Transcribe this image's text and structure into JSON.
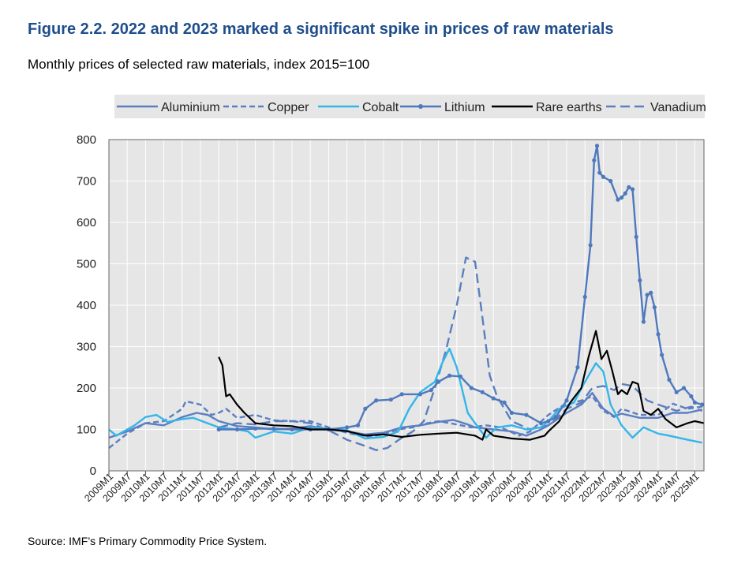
{
  "title": "Figure 2.2. 2022 and 2023 marked a significant spike in prices of raw materials",
  "subtitle": "Monthly prices of selected raw materials, index 2015=100",
  "source": "Source: IMF’s Primary Commodity Price System.",
  "colors": {
    "plot_bg": "#e6e6e6",
    "legend_bg": "#e6e6e6",
    "grid": "#ffffff",
    "title": "#1f4e8c"
  },
  "chart_data": {
    "type": "line",
    "title": "2022 and 2023 marked a significant spike in prices of raw materials",
    "xlabel": "",
    "ylabel": "",
    "ylim": [
      0,
      800
    ],
    "yticks": [
      0,
      100,
      200,
      300,
      400,
      500,
      600,
      700,
      800
    ],
    "x_range": [
      2009.0,
      2025.25
    ],
    "xtick_labels": [
      "2009M1",
      "2009M7",
      "2010M1",
      "2010M7",
      "2011M1",
      "2011M7",
      "2012M1",
      "2012M7",
      "2013M1",
      "2013M7",
      "2014M1",
      "2014M7",
      "2015M1",
      "2015M7",
      "2016M1",
      "2016M7",
      "2017M1",
      "2017M7",
      "2018M1",
      "2018M7",
      "2019M1",
      "2019M7",
      "2020M1",
      "2020M7",
      "2021M1",
      "2021M7",
      "2022M1",
      "2022M7",
      "2023M1",
      "2023M7",
      "2024M1",
      "2024M7",
      "2025M1"
    ],
    "grid": true,
    "legend_position": "top",
    "series": [
      {
        "name": "Aluminium",
        "color": "#5b7fc0",
        "dash": "solid",
        "markers": false,
        "points": [
          [
            2009.0,
            80
          ],
          [
            2009.5,
            95
          ],
          [
            2010.0,
            115
          ],
          [
            2010.5,
            110
          ],
          [
            2011.0,
            130
          ],
          [
            2011.4,
            140
          ],
          [
            2011.7,
            135
          ],
          [
            2012.0,
            120
          ],
          [
            2012.5,
            108
          ],
          [
            2013.0,
            105
          ],
          [
            2013.5,
            100
          ],
          [
            2014.0,
            102
          ],
          [
            2014.5,
            108
          ],
          [
            2015.0,
            100
          ],
          [
            2015.5,
            95
          ],
          [
            2016.0,
            88
          ],
          [
            2016.5,
            92
          ],
          [
            2017.0,
            105
          ],
          [
            2017.5,
            110
          ],
          [
            2018.0,
            118
          ],
          [
            2018.4,
            123
          ],
          [
            2018.8,
            112
          ],
          [
            2019.0,
            105
          ],
          [
            2019.5,
            100
          ],
          [
            2020.0,
            95
          ],
          [
            2020.4,
            85
          ],
          [
            2020.8,
            100
          ],
          [
            2021.0,
            110
          ],
          [
            2021.5,
            140
          ],
          [
            2021.9,
            160
          ],
          [
            2022.2,
            188
          ],
          [
            2022.5,
            150
          ],
          [
            2022.8,
            132
          ],
          [
            2023.0,
            138
          ],
          [
            2023.5,
            128
          ],
          [
            2024.0,
            128
          ],
          [
            2024.4,
            140
          ],
          [
            2024.8,
            140
          ],
          [
            2025.2,
            148
          ]
        ]
      },
      {
        "name": "Copper",
        "color": "#5b7fc0",
        "dash": "7,4",
        "markers": false,
        "points": [
          [
            2009.0,
            55
          ],
          [
            2009.5,
            90
          ],
          [
            2010.0,
            115
          ],
          [
            2010.5,
            120
          ],
          [
            2011.0,
            150
          ],
          [
            2011.1,
            168
          ],
          [
            2011.5,
            160
          ],
          [
            2011.8,
            135
          ],
          [
            2012.0,
            140
          ],
          [
            2012.2,
            150
          ],
          [
            2012.5,
            128
          ],
          [
            2013.0,
            135
          ],
          [
            2013.5,
            122
          ],
          [
            2014.0,
            120
          ],
          [
            2014.5,
            120
          ],
          [
            2015.0,
            105
          ],
          [
            2015.5,
            92
          ],
          [
            2016.0,
            82
          ],
          [
            2016.5,
            88
          ],
          [
            2016.9,
            100
          ],
          [
            2017.3,
            105
          ],
          [
            2017.7,
            115
          ],
          [
            2018.0,
            120
          ],
          [
            2018.5,
            112
          ],
          [
            2018.9,
            105
          ],
          [
            2019.3,
            110
          ],
          [
            2019.7,
            105
          ],
          [
            2020.2,
            85
          ],
          [
            2020.5,
            95
          ],
          [
            2021.0,
            135
          ],
          [
            2021.4,
            158
          ],
          [
            2021.9,
            170
          ],
          [
            2022.2,
            180
          ],
          [
            2022.5,
            145
          ],
          [
            2022.8,
            130
          ],
          [
            2023.0,
            150
          ],
          [
            2023.5,
            135
          ],
          [
            2024.0,
            135
          ],
          [
            2024.4,
            162
          ],
          [
            2024.8,
            150
          ],
          [
            2025.2,
            155
          ]
        ]
      },
      {
        "name": "Cobalt",
        "color": "#33b6e8",
        "dash": "solid",
        "markers": false,
        "points": [
          [
            2009.0,
            100
          ],
          [
            2009.2,
            85
          ],
          [
            2009.7,
            110
          ],
          [
            2010.0,
            130
          ],
          [
            2010.3,
            135
          ],
          [
            2010.6,
            118
          ],
          [
            2011.0,
            125
          ],
          [
            2011.3,
            128
          ],
          [
            2011.6,
            118
          ],
          [
            2012.0,
            105
          ],
          [
            2012.5,
            100
          ],
          [
            2012.8,
            95
          ],
          [
            2013.0,
            80
          ],
          [
            2013.5,
            95
          ],
          [
            2014.0,
            90
          ],
          [
            2014.5,
            105
          ],
          [
            2015.0,
            102
          ],
          [
            2015.5,
            98
          ],
          [
            2016.0,
            78
          ],
          [
            2016.5,
            82
          ],
          [
            2016.9,
            95
          ],
          [
            2017.2,
            150
          ],
          [
            2017.5,
            190
          ],
          [
            2017.9,
            215
          ],
          [
            2018.1,
            260
          ],
          [
            2018.3,
            295
          ],
          [
            2018.5,
            250
          ],
          [
            2018.8,
            140
          ],
          [
            2019.0,
            115
          ],
          [
            2019.3,
            80
          ],
          [
            2019.6,
            105
          ],
          [
            2020.0,
            110
          ],
          [
            2020.4,
            100
          ],
          [
            2020.8,
            105
          ],
          [
            2021.0,
            120
          ],
          [
            2021.3,
            150
          ],
          [
            2021.7,
            165
          ],
          [
            2022.0,
            215
          ],
          [
            2022.3,
            260
          ],
          [
            2022.5,
            240
          ],
          [
            2022.7,
            160
          ],
          [
            2023.0,
            110
          ],
          [
            2023.3,
            80
          ],
          [
            2023.6,
            105
          ],
          [
            2024.0,
            90
          ],
          [
            2024.3,
            85
          ],
          [
            2024.8,
            75
          ],
          [
            2025.2,
            68
          ]
        ]
      },
      {
        "name": "Lithium",
        "color": "#4f79bd",
        "dash": "solid",
        "markers": true,
        "points": [
          [
            2012.0,
            100
          ],
          [
            2012.5,
            100
          ],
          [
            2013.0,
            102
          ],
          [
            2013.5,
            102
          ],
          [
            2014.0,
            100
          ],
          [
            2014.5,
            100
          ],
          [
            2015.0,
            100
          ],
          [
            2015.5,
            105
          ],
          [
            2015.8,
            110
          ],
          [
            2016.0,
            150
          ],
          [
            2016.3,
            170
          ],
          [
            2016.7,
            172
          ],
          [
            2017.0,
            185
          ],
          [
            2017.5,
            185
          ],
          [
            2017.8,
            195
          ],
          [
            2018.0,
            215
          ],
          [
            2018.3,
            230
          ],
          [
            2018.6,
            228
          ],
          [
            2018.9,
            200
          ],
          [
            2019.2,
            190
          ],
          [
            2019.5,
            175
          ],
          [
            2019.8,
            165
          ],
          [
            2020.0,
            140
          ],
          [
            2020.4,
            135
          ],
          [
            2020.8,
            115
          ],
          [
            2021.0,
            120
          ],
          [
            2021.2,
            130
          ],
          [
            2021.5,
            170
          ],
          [
            2021.8,
            250
          ],
          [
            2022.0,
            420
          ],
          [
            2022.15,
            545
          ],
          [
            2022.25,
            750
          ],
          [
            2022.33,
            785
          ],
          [
            2022.4,
            720
          ],
          [
            2022.5,
            710
          ],
          [
            2022.7,
            700
          ],
          [
            2022.9,
            655
          ],
          [
            2023.0,
            660
          ],
          [
            2023.1,
            670
          ],
          [
            2023.2,
            685
          ],
          [
            2023.3,
            680
          ],
          [
            2023.4,
            565
          ],
          [
            2023.5,
            460
          ],
          [
            2023.6,
            360
          ],
          [
            2023.7,
            425
          ],
          [
            2023.8,
            430
          ],
          [
            2023.9,
            395
          ],
          [
            2024.0,
            330
          ],
          [
            2024.1,
            280
          ],
          [
            2024.3,
            220
          ],
          [
            2024.5,
            190
          ],
          [
            2024.7,
            200
          ],
          [
            2024.9,
            180
          ],
          [
            2025.0,
            165
          ],
          [
            2025.2,
            160
          ]
        ]
      },
      {
        "name": "Rare earths",
        "color": "#000000",
        "dash": "solid",
        "markers": false,
        "points": [
          [
            2012.0,
            275
          ],
          [
            2012.1,
            255
          ],
          [
            2012.2,
            180
          ],
          [
            2012.3,
            185
          ],
          [
            2012.5,
            160
          ],
          [
            2012.7,
            140
          ],
          [
            2013.0,
            115
          ],
          [
            2013.5,
            110
          ],
          [
            2014.0,
            108
          ],
          [
            2014.5,
            100
          ],
          [
            2015.0,
            100
          ],
          [
            2015.5,
            96
          ],
          [
            2016.0,
            85
          ],
          [
            2016.5,
            88
          ],
          [
            2017.0,
            82
          ],
          [
            2017.5,
            87
          ],
          [
            2018.0,
            90
          ],
          [
            2018.5,
            92
          ],
          [
            2019.0,
            85
          ],
          [
            2019.2,
            75
          ],
          [
            2019.3,
            100
          ],
          [
            2019.5,
            85
          ],
          [
            2020.0,
            78
          ],
          [
            2020.5,
            75
          ],
          [
            2020.9,
            85
          ],
          [
            2021.0,
            95
          ],
          [
            2021.3,
            120
          ],
          [
            2021.6,
            165
          ],
          [
            2021.9,
            200
          ],
          [
            2022.1,
            275
          ],
          [
            2022.3,
            338
          ],
          [
            2022.45,
            270
          ],
          [
            2022.6,
            290
          ],
          [
            2022.75,
            240
          ],
          [
            2022.9,
            185
          ],
          [
            2023.0,
            195
          ],
          [
            2023.15,
            185
          ],
          [
            2023.3,
            215
          ],
          [
            2023.45,
            210
          ],
          [
            2023.6,
            145
          ],
          [
            2023.8,
            135
          ],
          [
            2024.0,
            150
          ],
          [
            2024.2,
            125
          ],
          [
            2024.5,
            105
          ],
          [
            2024.8,
            115
          ],
          [
            2025.0,
            120
          ],
          [
            2025.25,
            115
          ]
        ]
      },
      {
        "name": "Vanadium",
        "color": "#5b7fc0",
        "dash": "12,6",
        "markers": false,
        "points": [
          [
            2012.0,
            105
          ],
          [
            2012.5,
            115
          ],
          [
            2013.0,
            112
          ],
          [
            2013.5,
            120
          ],
          [
            2014.0,
            120
          ],
          [
            2014.5,
            115
          ],
          [
            2015.0,
            98
          ],
          [
            2015.5,
            75
          ],
          [
            2016.0,
            60
          ],
          [
            2016.3,
            50
          ],
          [
            2016.6,
            55
          ],
          [
            2017.0,
            80
          ],
          [
            2017.3,
            95
          ],
          [
            2017.6,
            120
          ],
          [
            2017.9,
            200
          ],
          [
            2018.2,
            290
          ],
          [
            2018.5,
            400
          ],
          [
            2018.75,
            515
          ],
          [
            2019.0,
            505
          ],
          [
            2019.2,
            370
          ],
          [
            2019.4,
            230
          ],
          [
            2019.6,
            180
          ],
          [
            2020.0,
            120
          ],
          [
            2020.5,
            100
          ],
          [
            2021.0,
            110
          ],
          [
            2021.5,
            150
          ],
          [
            2021.9,
            165
          ],
          [
            2022.2,
            200
          ],
          [
            2022.5,
            205
          ],
          [
            2022.8,
            195
          ],
          [
            2023.0,
            210
          ],
          [
            2023.3,
            205
          ],
          [
            2023.7,
            170
          ],
          [
            2024.0,
            160
          ],
          [
            2024.5,
            145
          ],
          [
            2024.9,
            155
          ],
          [
            2025.2,
            145
          ]
        ]
      }
    ]
  }
}
